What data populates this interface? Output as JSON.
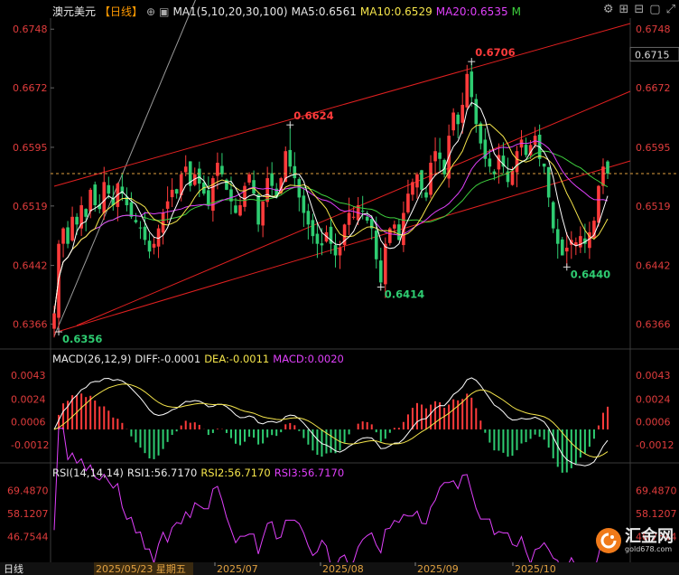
{
  "header": {
    "symbol": "澳元美元",
    "period": "【日线】",
    "ma_label": "MA1(5,10,20,30,100)",
    "ma5": "MA5:0.6561",
    "ma10": "MA10:0.6529",
    "ma20": "MA20:0.6535",
    "marker": "M"
  },
  "colors": {
    "up": "#ff3b3b",
    "down": "#2ecc71",
    "ma5": "#ffffff",
    "ma10": "#f5e54b",
    "ma20": "#e040fb",
    "ma30": "#3ecf3e",
    "ma100": "#9a9a9a",
    "channel": "#e02020",
    "axis_text": "#e03c3c",
    "current": "#e0a040"
  },
  "price_axis": [
    "0.6748",
    "0.6672",
    "0.6595",
    "0.6519",
    "0.6442",
    "0.6366"
  ],
  "current_price": "0.6715",
  "annotations": [
    "0.6356",
    "0.6624",
    "0.6706",
    "0.6414",
    "0.6440"
  ],
  "macd_header": {
    "label": "MACD(26,12,9)",
    "diff": "DIFF:-0.0001",
    "dea": "DEA:-0.0011",
    "macd": "MACD:0.0020"
  },
  "macd_axis": [
    "0.0043",
    "0.0024",
    "0.0006",
    "-0.0012"
  ],
  "rsi_header": {
    "label": "RSI(14,14,14)",
    "rsi1": "RSI1:56.7170",
    "rsi2": "RSI2:56.7170",
    "rsi3": "RSI3:56.7170"
  },
  "rsi_axis": [
    "69.4870",
    "58.1207",
    "46.7544"
  ],
  "bottom_bar": {
    "period_tag": "日线",
    "cursor_date": "2025/05/23 星期五",
    "dates": [
      "2025/07",
      "2025/08",
      "2025/09",
      "2025/10"
    ]
  },
  "watermark": {
    "text": "汇金网",
    "url": "gold678.com"
  },
  "chart_data": {
    "type": "candlestick",
    "price_range": [
      0.6335,
      0.676
    ],
    "key_points": [
      {
        "label": "0.6356",
        "value": 0.6356,
        "bar": 1
      },
      {
        "label": "0.6624",
        "value": 0.6624,
        "bar": 52
      },
      {
        "label": "0.6706",
        "value": 0.6706,
        "bar": 92
      },
      {
        "label": "0.6414",
        "value": 0.6414,
        "bar": 72
      },
      {
        "label": "0.6440",
        "value": 0.644,
        "bar": 113
      }
    ],
    "price_path": [
      0.638,
      0.647,
      0.649,
      0.647,
      0.6505,
      0.6495,
      0.652,
      0.6505,
      0.654,
      0.652,
      0.6515,
      0.655,
      0.6535,
      0.652,
      0.6548,
      0.6535,
      0.652,
      0.6505,
      0.6498,
      0.649,
      0.6475,
      0.646,
      0.647,
      0.649,
      0.651,
      0.6525,
      0.654,
      0.6535,
      0.656,
      0.657,
      0.6545,
      0.656,
      0.6548,
      0.6535,
      0.652,
      0.6555,
      0.6575,
      0.656,
      0.654,
      0.6525,
      0.651,
      0.652,
      0.6545,
      0.656,
      0.6535,
      0.6495,
      0.6525,
      0.6555,
      0.6545,
      0.653,
      0.6555,
      0.659,
      0.657,
      0.6555,
      0.653,
      0.651,
      0.6495,
      0.648,
      0.647,
      0.6468,
      0.6485,
      0.647,
      0.6455,
      0.6465,
      0.6495,
      0.651,
      0.6505,
      0.652,
      0.6512,
      0.65,
      0.649,
      0.645,
      0.642,
      0.647,
      0.649,
      0.6495,
      0.6475,
      0.651,
      0.6535,
      0.655,
      0.656,
      0.654,
      0.653,
      0.6575,
      0.659,
      0.658,
      0.656,
      0.661,
      0.664,
      0.6625,
      0.665,
      0.669,
      0.666,
      0.6625,
      0.66,
      0.658,
      0.657,
      0.656,
      0.6585,
      0.657,
      0.655,
      0.6565,
      0.659,
      0.6605,
      0.6585,
      0.6598,
      0.661,
      0.658,
      0.657,
      0.653,
      0.649,
      0.647,
      0.6455,
      0.6465,
      0.6475,
      0.6472,
      0.648,
      0.647,
      0.6485,
      0.65,
      0.6545,
      0.657,
      0.6561
    ],
    "macd_range": [
      -0.0025,
      0.005
    ],
    "rsi_range": [
      35,
      75
    ]
  }
}
